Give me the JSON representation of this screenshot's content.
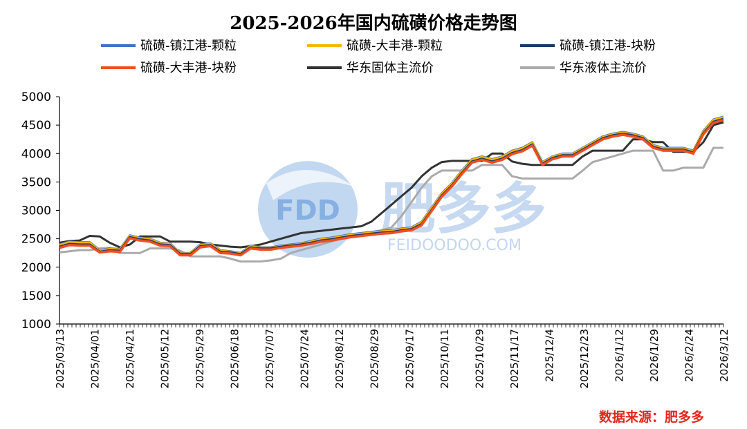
{
  "chart_data": {
    "type": "line",
    "title": "2025-2026年国内硫磺价格走势图",
    "ylim": [
      1000,
      5000
    ],
    "yticks": [
      1000,
      1500,
      2000,
      2500,
      3000,
      3500,
      4000,
      4500,
      5000
    ],
    "x_tick_labels": [
      "2025/03/13",
      "2025/04/01",
      "2025/04/21",
      "2025/05/12",
      "2025/05/29",
      "2025/06/18",
      "2025/07/07",
      "2025/07/24",
      "2025/08/12",
      "2025/08/29",
      "2025/09/17",
      "2025/10/11",
      "2025/10/29",
      "2025/11/17",
      "2025/12/4",
      "2025/12/23",
      "2026/1/12",
      "2026/1/29",
      "2026/2/24",
      "2026/3/12"
    ],
    "grid": false,
    "legend_placement": "top",
    "series": [
      {
        "name": "硫磺-镇江港-颗粒",
        "color": "#4472c4",
        "values": [
          2400,
          2450,
          2440,
          2440,
          2300,
          2330,
          2320,
          2560,
          2520,
          2500,
          2430,
          2420,
          2250,
          2250,
          2400,
          2420,
          2300,
          2280,
          2250,
          2380,
          2350,
          2350,
          2380,
          2400,
          2420,
          2460,
          2500,
          2520,
          2550,
          2580,
          2600,
          2620,
          2640,
          2650,
          2680,
          2700,
          2800,
          3050,
          3300,
          3480,
          3700,
          3900,
          3950,
          3900,
          3950,
          4050,
          4100,
          4200,
          3850,
          3950,
          4000,
          4000,
          4100,
          4200,
          4300,
          4350,
          4380,
          4350,
          4300,
          4150,
          4100,
          4100,
          4100,
          4050,
          4400,
          4600,
          4650
        ]
      },
      {
        "name": "硫磺-大丰港-颗粒",
        "color": "#f2b800",
        "values": [
          2390,
          2440,
          2430,
          2430,
          2290,
          2320,
          2310,
          2550,
          2510,
          2490,
          2420,
          2410,
          2240,
          2240,
          2390,
          2410,
          2290,
          2270,
          2240,
          2370,
          2340,
          2340,
          2370,
          2390,
          2410,
          2450,
          2490,
          2510,
          2540,
          2570,
          2590,
          2610,
          2630,
          2640,
          2670,
          2690,
          2790,
          3040,
          3290,
          3470,
          3690,
          3890,
          3940,
          3890,
          3940,
          4040,
          4090,
          4190,
          3840,
          3940,
          3990,
          3990,
          4090,
          4190,
          4290,
          4340,
          4370,
          4340,
          4290,
          4140,
          4090,
          4090,
          4090,
          4040,
          4390,
          4590,
          4640
        ]
      },
      {
        "name": "硫磺-镇江港-块粉",
        "color": "#1f3864",
        "values": [
          2360,
          2410,
          2400,
          2400,
          2270,
          2300,
          2290,
          2530,
          2490,
          2470,
          2400,
          2390,
          2230,
          2230,
          2370,
          2390,
          2270,
          2260,
          2230,
          2350,
          2330,
          2330,
          2360,
          2380,
          2400,
          2430,
          2470,
          2490,
          2520,
          2550,
          2570,
          2590,
          2610,
          2620,
          2650,
          2670,
          2760,
          3010,
          3260,
          3440,
          3660,
          3860,
          3910,
          3860,
          3910,
          4010,
          4060,
          4160,
          3820,
          3920,
          3970,
          3970,
          4070,
          4170,
          4270,
          4320,
          4350,
          4320,
          4270,
          4120,
          4070,
          4070,
          4070,
          4020,
          4360,
          4560,
          4610
        ]
      },
      {
        "name": "硫磺-大丰港-块粉",
        "color": "#f04e23",
        "values": [
          2340,
          2390,
          2380,
          2380,
          2260,
          2280,
          2270,
          2510,
          2470,
          2450,
          2380,
          2370,
          2210,
          2210,
          2350,
          2370,
          2250,
          2240,
          2210,
          2330,
          2310,
          2310,
          2340,
          2360,
          2380,
          2410,
          2450,
          2470,
          2500,
          2530,
          2550,
          2570,
          2590,
          2600,
          2630,
          2650,
          2740,
          2990,
          3240,
          3420,
          3640,
          3840,
          3890,
          3840,
          3890,
          3990,
          4040,
          4140,
          3800,
          3900,
          3950,
          3950,
          4050,
          4150,
          4250,
          4300,
          4330,
          4300,
          4250,
          4100,
          4050,
          4050,
          4050,
          4000,
          4340,
          4540,
          4590
        ]
      },
      {
        "name": "华东固体主流价",
        "color": "#333333",
        "values": [
          2430,
          2460,
          2470,
          2550,
          2540,
          2430,
          2350,
          2400,
          2540,
          2540,
          2540,
          2450,
          2450,
          2450,
          2440,
          2400,
          2380,
          2360,
          2350,
          2370,
          2400,
          2450,
          2500,
          2550,
          2600,
          2620,
          2640,
          2660,
          2680,
          2700,
          2720,
          2800,
          2950,
          3100,
          3250,
          3400,
          3600,
          3750,
          3850,
          3870,
          3870,
          3870,
          3870,
          4000,
          4000,
          3860,
          3820,
          3800,
          3800,
          3800,
          3800,
          3800,
          3950,
          4050,
          4050,
          4050,
          4050,
          4250,
          4250,
          4200,
          4200,
          4030,
          4030,
          4030,
          4200,
          4500,
          4550
        ]
      },
      {
        "name": "华东液体主流价",
        "color": "#aaaaaa",
        "values": [
          2260,
          2280,
          2300,
          2300,
          2330,
          2340,
          2250,
          2250,
          2250,
          2330,
          2330,
          2330,
          2290,
          2190,
          2190,
          2190,
          2190,
          2150,
          2100,
          2100,
          2100,
          2120,
          2150,
          2250,
          2300,
          2350,
          2400,
          2450,
          2500,
          2550,
          2600,
          2620,
          2650,
          2700,
          2900,
          3150,
          3400,
          3600,
          3700,
          3700,
          3700,
          3700,
          3800,
          3800,
          3800,
          3600,
          3560,
          3560,
          3560,
          3560,
          3560,
          3560,
          3700,
          3850,
          3900,
          3950,
          4000,
          4050,
          4050,
          4050,
          3700,
          3700,
          3750,
          3750,
          3750,
          4100,
          4100
        ]
      }
    ]
  },
  "source_label": "数据来源：肥多多",
  "watermark": {
    "brand": "肥多多",
    "abbr": "FDD",
    "url": "FEIDOODOO.COM"
  }
}
